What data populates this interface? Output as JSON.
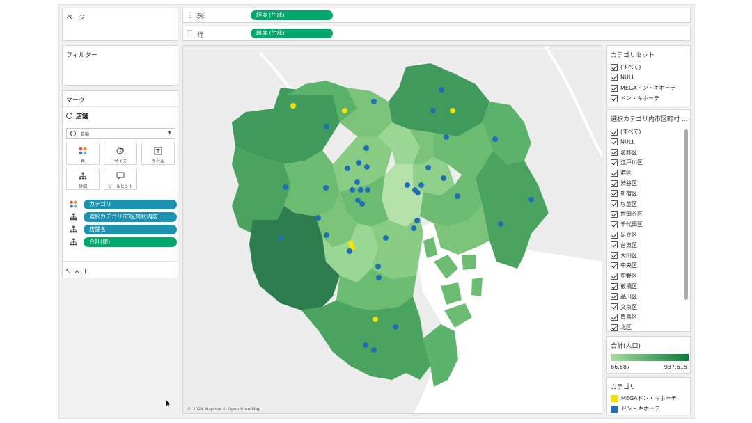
{
  "pages_shelf": {
    "title": "ページ"
  },
  "columns_shelf": {
    "label": "列",
    "pill": "経度 (生成)"
  },
  "rows_shelf": {
    "label": "行",
    "pill": "緯度 (生成)"
  },
  "filters": {
    "title": "フィルター"
  },
  "marks": {
    "title": "マーク",
    "layer": "店舗",
    "mark_type": "自動",
    "buttons": [
      {
        "id": "color",
        "label": "色"
      },
      {
        "id": "size",
        "label": "サイズ"
      },
      {
        "id": "label",
        "label": "ラベル"
      },
      {
        "id": "detail",
        "label": "詳細"
      },
      {
        "id": "tooltip",
        "label": "ツールヒント"
      }
    ],
    "fields": [
      {
        "icon": "color-icon",
        "label": "カテゴリ",
        "style": "teal"
      },
      {
        "icon": "detail-icon",
        "label": "選択カテゴリ/市区町村内店..",
        "style": "teal"
      },
      {
        "icon": "detail-icon",
        "label": "店舗名",
        "style": "teal"
      },
      {
        "icon": "detail-icon",
        "label": "合計(値)",
        "style": "green"
      }
    ],
    "second_layer": "人口"
  },
  "category_set": {
    "title": "カテゴリセット",
    "items": [
      "(すべて)",
      "NULL",
      "MEGAドン・キホーテ",
      "ドン・キホーテ"
    ]
  },
  "ward_filter": {
    "title": "選択カテゴリ内市区町村 ...",
    "items": [
      "(すべて)",
      "NULL",
      "葛飾区",
      "江戸川区",
      "港区",
      "渋谷区",
      "新宿区",
      "杉並区",
      "世田谷区",
      "千代田区",
      "足立区",
      "台東区",
      "大田区",
      "中央区",
      "中野区",
      "板橋区",
      "品川区",
      "文京区",
      "豊島区",
      "北区"
    ]
  },
  "population_legend": {
    "title": "合計(人口)",
    "min": "66,687",
    "max": "937,615",
    "color_low": "#a8dca0",
    "color_high": "#0a7d3a"
  },
  "category_legend": {
    "title": "カテゴリ",
    "items": [
      {
        "label": "MEGAドン・キホーテ",
        "color": "#f5e000"
      },
      {
        "label": "ドン・キホーテ",
        "color": "#1f6fb5"
      }
    ]
  },
  "map": {
    "attribution": "© 2024 Mapbox © OpenStreetMap",
    "water_color": "#ffffff",
    "land_color": "#ececec"
  }
}
